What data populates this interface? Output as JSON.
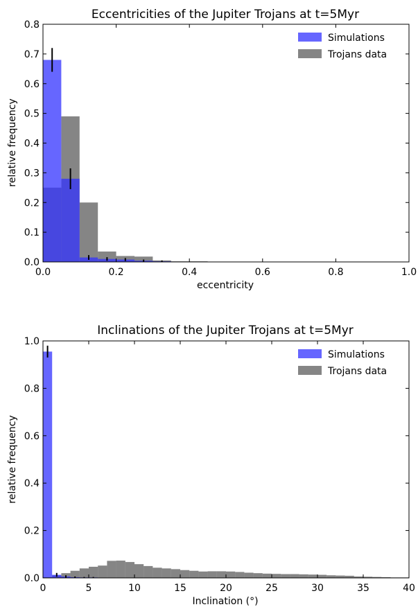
{
  "chart_data": [
    {
      "type": "bar",
      "title": "Eccentricities of the Jupiter Trojans at t=5Myr",
      "xlabel": "eccentricity",
      "ylabel": "relative frequency",
      "xlim": [
        0,
        1.0
      ],
      "ylim": [
        0,
        0.8
      ],
      "xticks": [
        "0.0",
        "0.2",
        "0.4",
        "0.6",
        "0.8",
        "1.0"
      ],
      "yticks": [
        "0.0",
        "0.1",
        "0.2",
        "0.3",
        "0.4",
        "0.5",
        "0.6",
        "0.7",
        "0.8"
      ],
      "bin_width": 0.05,
      "bin_starts": [
        0.0,
        0.05,
        0.1,
        0.15,
        0.2,
        0.25,
        0.3,
        0.35,
        0.4,
        0.45
      ],
      "series": [
        {
          "name": "Simulations",
          "color": "#0000ff",
          "values": [
            0.68,
            0.28,
            0.015,
            0.01,
            0.008,
            0.004,
            0.002,
            0.0,
            0.0,
            0.0
          ],
          "errors": [
            0.04,
            0.035,
            0.008,
            0.006,
            0.005,
            0.004,
            0.003,
            0.0,
            0.0,
            0.0
          ]
        },
        {
          "name": "Trojans data",
          "color": "#000000",
          "values": [
            0.25,
            0.49,
            0.2,
            0.035,
            0.02,
            0.018,
            0.005,
            0.002,
            0.002,
            0.001
          ]
        }
      ],
      "legend": "top-right"
    },
    {
      "type": "bar",
      "title": "Inclinations of the Jupiter Trojans at t=5Myr",
      "xlabel": "Inclination (°)",
      "ylabel": "relative frequency",
      "xlim": [
        0,
        40
      ],
      "ylim": [
        0,
        1.0
      ],
      "xticks": [
        "0",
        "5",
        "10",
        "15",
        "20",
        "25",
        "30",
        "35",
        "40"
      ],
      "yticks": [
        "0.0",
        "0.2",
        "0.4",
        "0.6",
        "0.8",
        "1.0"
      ],
      "bin_width": 1.0,
      "bin_starts": [
        0,
        1,
        2,
        3,
        4,
        5,
        6,
        7,
        8,
        9,
        10,
        11,
        12,
        13,
        14,
        15,
        16,
        17,
        18,
        19,
        20,
        21,
        22,
        23,
        24,
        25,
        26,
        27,
        28,
        29,
        30,
        31,
        32,
        33,
        34,
        35,
        36,
        37,
        38,
        39
      ],
      "series": [
        {
          "name": "Simulations",
          "color": "#0000ff",
          "values": [
            0.955,
            0.013,
            0.006,
            0.003,
            0.002,
            0.002,
            0.0,
            0.0,
            0.0,
            0.0,
            0.0,
            0.0,
            0.0,
            0.0,
            0.0,
            0.0,
            0.0,
            0.0,
            0.0,
            0.0,
            0.0,
            0.0,
            0.0,
            0.0,
            0.0,
            0.0,
            0.0,
            0.0,
            0.0,
            0.0,
            0.0,
            0.0,
            0.0,
            0.0,
            0.0,
            0.0,
            0.0,
            0.0,
            0.0,
            0.0
          ],
          "errors": [
            0.025,
            0.008,
            0.005,
            0.003,
            0.002,
            0.002,
            0.0,
            0.0,
            0.0,
            0.0,
            0.0,
            0.0,
            0.0,
            0.0,
            0.0,
            0.0,
            0.0,
            0.0,
            0.0,
            0.0,
            0.0,
            0.0,
            0.0,
            0.0,
            0.0,
            0.0,
            0.0,
            0.0,
            0.0,
            0.0,
            0.0,
            0.0,
            0.0,
            0.0,
            0.0,
            0.0,
            0.0,
            0.0,
            0.0,
            0.0
          ]
        },
        {
          "name": "Trojans data",
          "color": "#000000",
          "values": [
            0.003,
            0.01,
            0.02,
            0.03,
            0.04,
            0.047,
            0.052,
            0.072,
            0.073,
            0.067,
            0.058,
            0.05,
            0.043,
            0.04,
            0.037,
            0.033,
            0.03,
            0.027,
            0.028,
            0.028,
            0.027,
            0.025,
            0.022,
            0.02,
            0.018,
            0.017,
            0.016,
            0.016,
            0.015,
            0.014,
            0.013,
            0.011,
            0.01,
            0.009,
            0.006,
            0.005,
            0.004,
            0.003,
            0.002,
            0.002
          ]
        }
      ],
      "legend": "top-right"
    }
  ]
}
